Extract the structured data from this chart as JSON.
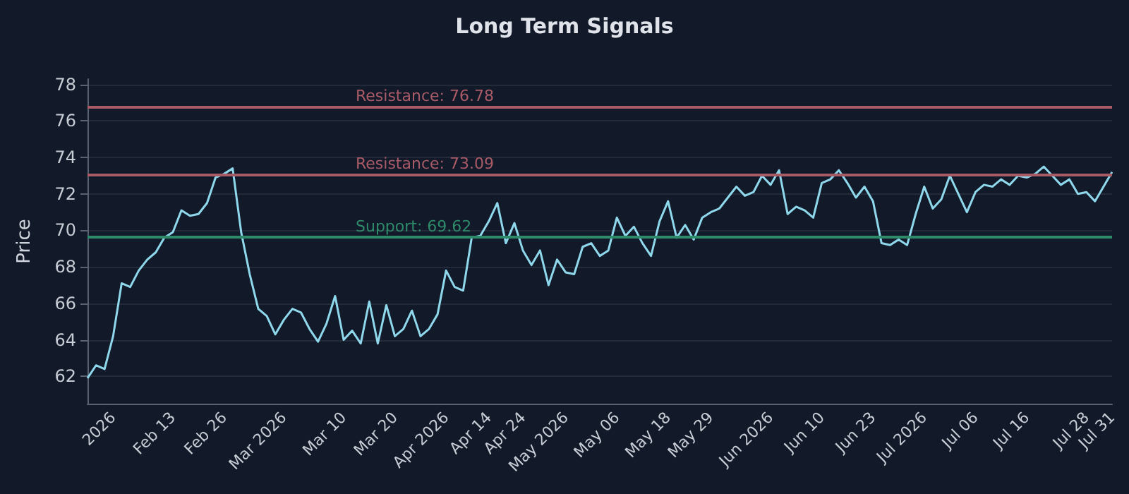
{
  "chart_data": {
    "type": "line",
    "title": "Long Term Signals",
    "ylabel": "Price",
    "categories": [
      null,
      null,
      null,
      "2026",
      null,
      null,
      null,
      null,
      null,
      null,
      "Feb 13",
      null,
      null,
      null,
      null,
      null,
      "Feb 26",
      null,
      null,
      null,
      null,
      null,
      null,
      "Mar 2026",
      null,
      null,
      null,
      null,
      null,
      null,
      "Mar 10",
      null,
      null,
      null,
      null,
      null,
      "Mar 20",
      null,
      null,
      null,
      null,
      null,
      "Apr 2026",
      null,
      null,
      null,
      null,
      "Apr 14",
      null,
      null,
      null,
      "Apr 24",
      null,
      null,
      null,
      null,
      "May 2026",
      null,
      null,
      null,
      null,
      null,
      "May 06",
      null,
      null,
      null,
      null,
      null,
      "May 18",
      null,
      null,
      null,
      null,
      "May 29",
      null,
      null,
      null,
      null,
      null,
      null,
      "Jun 2026",
      null,
      null,
      null,
      null,
      null,
      "Jun 10",
      null,
      null,
      null,
      null,
      null,
      "Jun 23",
      null,
      null,
      null,
      null,
      null,
      "Jul 2026",
      null,
      null,
      null,
      null,
      null,
      "Jul 06",
      null,
      null,
      null,
      null,
      null,
      "Jul 16",
      null,
      null,
      null,
      null,
      null,
      null,
      "Jul 28",
      null,
      null,
      "Jul 31"
    ],
    "series": [
      {
        "color": "#8fd8ec",
        "values": [
          61.9,
          62.6,
          62.4,
          64.2,
          67.1,
          66.9,
          67.8,
          68.4,
          68.8,
          69.6,
          69.9,
          71.1,
          70.8,
          70.9,
          71.5,
          72.9,
          73.1,
          73.4,
          69.9,
          67.6,
          65.7,
          65.3,
          64.3,
          65.1,
          65.7,
          65.5,
          64.6,
          63.9,
          64.9,
          66.4,
          64.0,
          64.5,
          63.8,
          66.1,
          63.8,
          65.9,
          64.2,
          64.6,
          65.6,
          64.2,
          64.6,
          65.4,
          67.8,
          66.9,
          66.7,
          69.6,
          69.7,
          70.5,
          71.5,
          69.3,
          70.4,
          68.9,
          68.1,
          68.9,
          67.0,
          68.4,
          67.7,
          67.6,
          69.1,
          69.3,
          68.6,
          68.9,
          70.7,
          69.7,
          70.2,
          69.3,
          68.6,
          70.5,
          71.6,
          69.6,
          70.3,
          69.5,
          70.7,
          71.0,
          71.2,
          71.8,
          72.4,
          71.9,
          72.1,
          73.0,
          72.5,
          73.3,
          70.9,
          71.3,
          71.1,
          70.7,
          72.6,
          72.8,
          73.3,
          72.6,
          71.8,
          72.4,
          71.6,
          69.3,
          69.2,
          69.5,
          69.2,
          70.9,
          72.4,
          71.2,
          71.7,
          73.0,
          72.0,
          71.0,
          72.1,
          72.5,
          72.4,
          72.8,
          72.5,
          73.0,
          72.9,
          73.1,
          73.5,
          73.0,
          72.5,
          72.8,
          72.0,
          72.1,
          71.6,
          72.4,
          73.2
        ]
      }
    ],
    "ylim": [
      60.5,
      78.3
    ],
    "yticks": [
      62,
      64,
      66,
      68,
      70,
      72,
      74,
      76,
      78
    ],
    "ref_lines": [
      {
        "axis": "y",
        "value": 76.78,
        "label": "Resistance: 76.78",
        "color": "#a85a66"
      },
      {
        "axis": "y",
        "value": 73.09,
        "label": "Resistance: 73.09",
        "color": "#a85a66"
      },
      {
        "axis": "y",
        "value": 69.62,
        "label": "Support: 69.62",
        "color": "#2e8a6a"
      }
    ],
    "grid": "y",
    "marker": "none",
    "line_style": "solid"
  }
}
